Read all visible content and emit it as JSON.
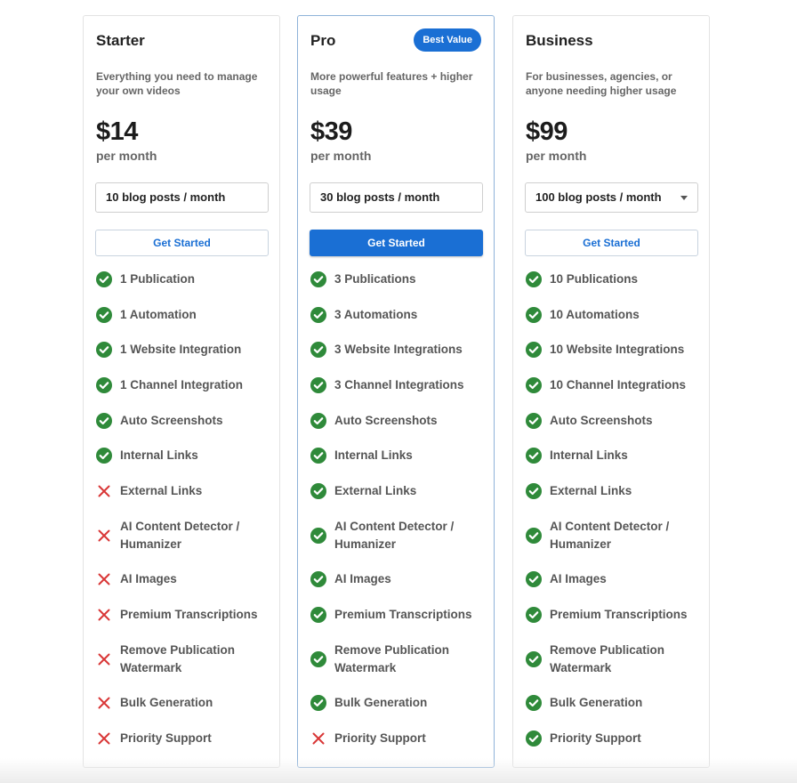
{
  "colors": {
    "accent": "#1a6fd4",
    "check": "#2f8a3a",
    "cross": "#d93636"
  },
  "plans": [
    {
      "id": "starter",
      "name": "Starter",
      "badge": "",
      "description": "Everything you need to manage your own videos",
      "price": "$14",
      "period": "per month",
      "selection": "10 blog posts / month",
      "has_dropdown": false,
      "cta": "Get Started",
      "cta_primary": false,
      "features": [
        {
          "label": "1 Publication",
          "included": true
        },
        {
          "label": "1 Automation",
          "included": true
        },
        {
          "label": "1 Website Integration",
          "included": true
        },
        {
          "label": "1 Channel Integration",
          "included": true
        },
        {
          "label": "Auto Screenshots",
          "included": true
        },
        {
          "label": "Internal Links",
          "included": true
        },
        {
          "label": "External Links",
          "included": false
        },
        {
          "label": "AI Content Detector / Humanizer",
          "included": false
        },
        {
          "label": "AI Images",
          "included": false
        },
        {
          "label": "Premium Transcriptions",
          "included": false
        },
        {
          "label": "Remove Publication Watermark",
          "included": false
        },
        {
          "label": "Bulk Generation",
          "included": false
        },
        {
          "label": "Priority Support",
          "included": false
        }
      ]
    },
    {
      "id": "pro",
      "name": "Pro",
      "badge": "Best Value",
      "description": "More powerful features + higher usage",
      "price": "$39",
      "period": "per month",
      "selection": "30 blog posts / month",
      "has_dropdown": false,
      "cta": "Get Started",
      "cta_primary": true,
      "features": [
        {
          "label": "3 Publications",
          "included": true
        },
        {
          "label": "3 Automations",
          "included": true
        },
        {
          "label": "3 Website Integrations",
          "included": true
        },
        {
          "label": "3 Channel Integrations",
          "included": true
        },
        {
          "label": "Auto Screenshots",
          "included": true
        },
        {
          "label": "Internal Links",
          "included": true
        },
        {
          "label": "External Links",
          "included": true
        },
        {
          "label": "AI Content Detector / Humanizer",
          "included": true
        },
        {
          "label": "AI Images",
          "included": true
        },
        {
          "label": "Premium Transcriptions",
          "included": true
        },
        {
          "label": "Remove Publication Watermark",
          "included": true
        },
        {
          "label": "Bulk Generation",
          "included": true
        },
        {
          "label": "Priority Support",
          "included": false
        }
      ]
    },
    {
      "id": "business",
      "name": "Business",
      "badge": "",
      "description": "For businesses, agencies, or anyone needing higher usage",
      "price": "$99",
      "period": "per month",
      "selection": "100 blog posts / month",
      "has_dropdown": true,
      "cta": "Get Started",
      "cta_primary": false,
      "features": [
        {
          "label": "10 Publications",
          "included": true
        },
        {
          "label": "10 Automations",
          "included": true
        },
        {
          "label": "10 Website Integrations",
          "included": true
        },
        {
          "label": "10 Channel Integrations",
          "included": true
        },
        {
          "label": "Auto Screenshots",
          "included": true
        },
        {
          "label": "Internal Links",
          "included": true
        },
        {
          "label": "External Links",
          "included": true
        },
        {
          "label": "AI Content Detector / Humanizer",
          "included": true
        },
        {
          "label": "AI Images",
          "included": true
        },
        {
          "label": "Premium Transcriptions",
          "included": true
        },
        {
          "label": "Remove Publication Watermark",
          "included": true
        },
        {
          "label": "Bulk Generation",
          "included": true
        },
        {
          "label": "Priority Support",
          "included": true
        }
      ]
    }
  ]
}
